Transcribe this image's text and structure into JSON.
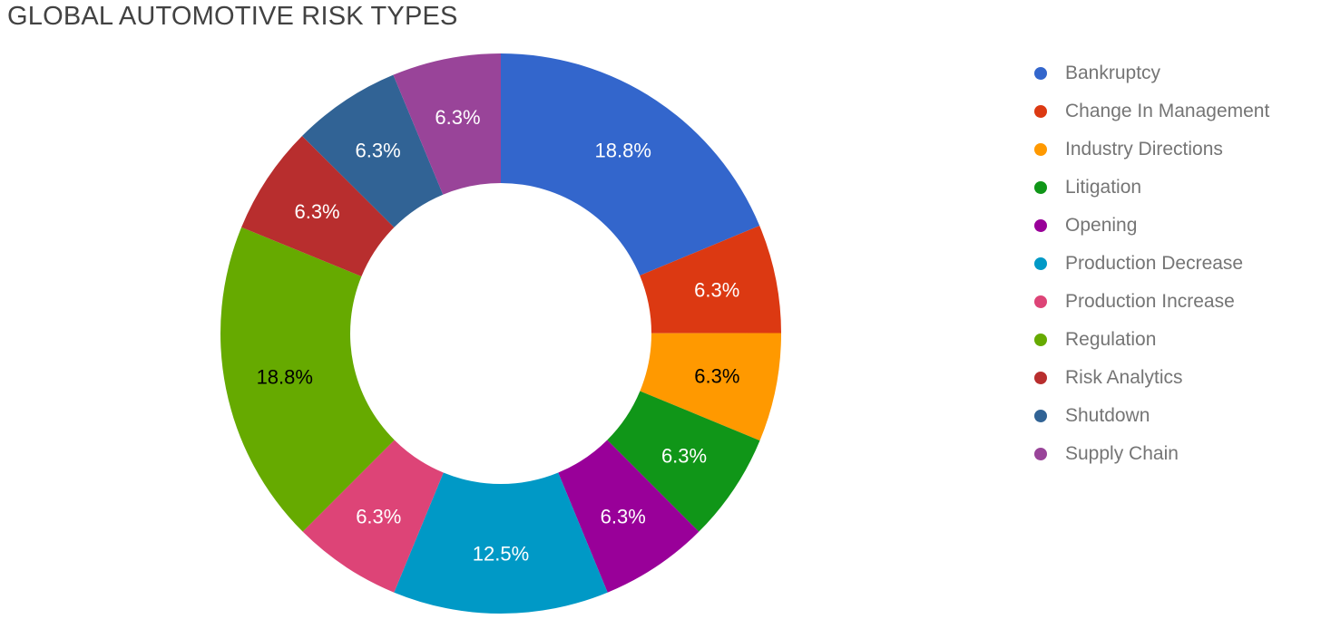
{
  "chart_data": {
    "type": "pie",
    "subtype": "donut",
    "title": "GLOBAL AUTOMOTIVE RISK TYPES",
    "legend_position": "right",
    "slice_label_format": "percent",
    "background_color": "#ffffff",
    "title_color": "#424242",
    "legend_text_color": "#757575",
    "start_angle_deg": 0,
    "direction": "clockwise",
    "slices": [
      {
        "label": "Bankruptcy",
        "value": 18.8,
        "percent_label": "18.8%",
        "color": "#3366CC",
        "label_color": "#ffffff"
      },
      {
        "label": "Change In Management",
        "value": 6.3,
        "percent_label": "6.3%",
        "color": "#DC3912",
        "label_color": "#ffffff"
      },
      {
        "label": "Industry Directions",
        "value": 6.3,
        "percent_label": "6.3%",
        "color": "#FF9900",
        "label_color": "#000000"
      },
      {
        "label": "Litigation",
        "value": 6.3,
        "percent_label": "6.3%",
        "color": "#109618",
        "label_color": "#ffffff"
      },
      {
        "label": "Opening",
        "value": 6.3,
        "percent_label": "6.3%",
        "color": "#990099",
        "label_color": "#ffffff"
      },
      {
        "label": "Production Decrease",
        "value": 12.5,
        "percent_label": "12.5%",
        "color": "#0099C6",
        "label_color": "#ffffff"
      },
      {
        "label": "Production Increase",
        "value": 6.3,
        "percent_label": "6.3%",
        "color": "#DD4477",
        "label_color": "#ffffff"
      },
      {
        "label": "Regulation",
        "value": 18.8,
        "percent_label": "18.8%",
        "color": "#66AA00",
        "label_color": "#000000"
      },
      {
        "label": "Risk Analytics",
        "value": 6.3,
        "percent_label": "6.3%",
        "color": "#B82E2E",
        "label_color": "#ffffff"
      },
      {
        "label": "Shutdown",
        "value": 6.3,
        "percent_label": "6.3%",
        "color": "#316395",
        "label_color": "#ffffff"
      },
      {
        "label": "Supply Chain",
        "value": 6.3,
        "percent_label": "6.3%",
        "color": "#994499",
        "label_color": "#ffffff"
      }
    ]
  }
}
